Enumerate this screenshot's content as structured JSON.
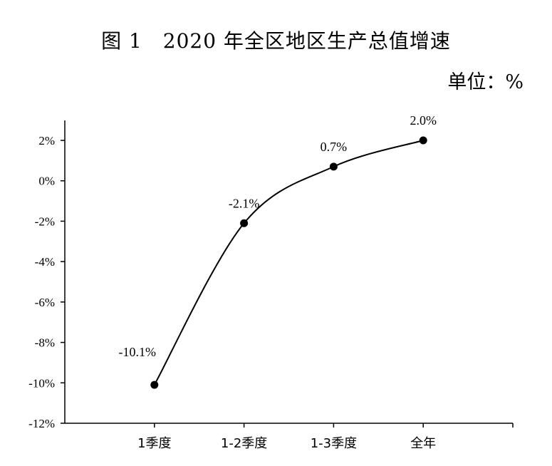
{
  "title": "图 1　2020 年全区地区生产总值增速",
  "unit": "单位：%",
  "colors": {
    "line": "#000000",
    "marker": "#000000",
    "axis": "#000000",
    "background": "#ffffff"
  },
  "chart_data": {
    "type": "line",
    "title": "图 1　2020 年全区地区生产总值增速",
    "xlabel": "",
    "ylabel": "",
    "categories": [
      "1季度",
      "1-2季度",
      "1-3季度",
      "全年"
    ],
    "series": [
      {
        "values": [
          -10.1,
          -2.1,
          0.7,
          2.0
        ],
        "data_labels": [
          "-10.1%",
          "-2.1%",
          "0.7%",
          "2.0%"
        ]
      }
    ],
    "ylim": [
      -12,
      2
    ],
    "yticks": [
      2,
      0,
      -2,
      -4,
      -6,
      -8,
      -10,
      -12
    ],
    "ytick_labels": [
      "2%",
      "0%",
      "-2%",
      "-4%",
      "-6%",
      "-8%",
      "-10%",
      "-12%"
    ],
    "smooth": true,
    "markers": true,
    "grid": false,
    "legend": "none"
  }
}
